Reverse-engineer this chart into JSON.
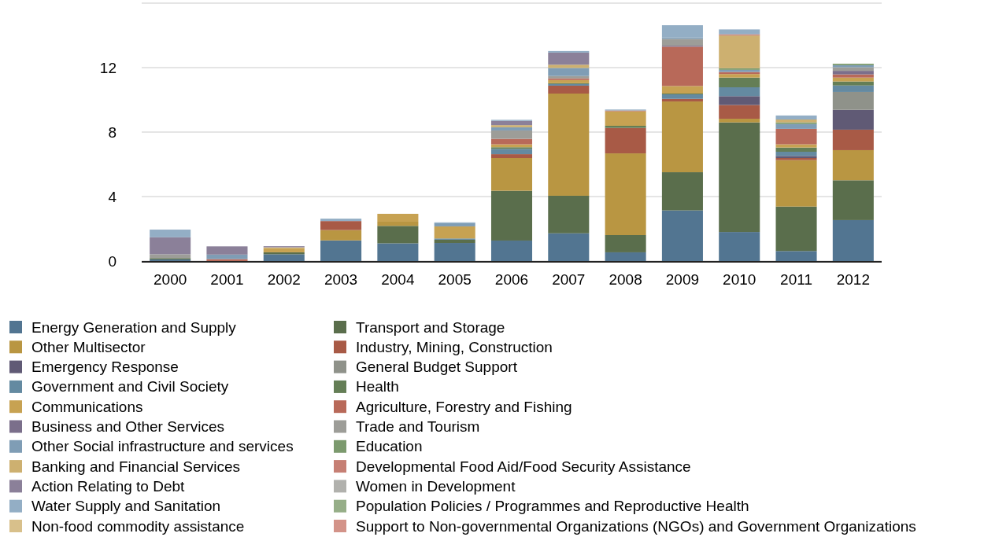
{
  "chart_data": {
    "type": "bar",
    "stacked": true,
    "categories": [
      "2000",
      "2001",
      "2002",
      "2003",
      "2004",
      "2005",
      "2006",
      "2007",
      "2008",
      "2009",
      "2010",
      "2011",
      "2012"
    ],
    "ylim": [
      0,
      16
    ],
    "yticks": [
      0,
      4,
      8,
      12
    ],
    "grid": "y",
    "legend": "bottom",
    "series": [
      {
        "name": "Energy Generation and Supply",
        "color": "#527591",
        "values": [
          0.1,
          0,
          0.42,
          1.28,
          1.1,
          1.12,
          1.27,
          1.72,
          0.54,
          3.14,
          1.8,
          0.62,
          2.54
        ]
      },
      {
        "name": "Transport and Storage",
        "color": "#5a6e4c",
        "values": [
          0.08,
          0,
          0.12,
          0,
          1.08,
          0.2,
          3.09,
          2.33,
          1.07,
          2.37,
          6.8,
          2.76,
          2.47
        ]
      },
      {
        "name": "Other Multisector",
        "color": "#b99642",
        "values": [
          0,
          0,
          0,
          0.64,
          0.26,
          0,
          2.03,
          6.34,
          5.07,
          4.39,
          0.23,
          2.88,
          1.87
        ]
      },
      {
        "name": "Industry, Mining, Construction",
        "color": "#a85a46",
        "values": [
          0,
          0,
          0,
          0.56,
          0,
          0,
          0.24,
          0.49,
          1.58,
          0.16,
          0.85,
          0.13,
          1.27
        ]
      },
      {
        "name": "Emergency Response",
        "color": "#605a75",
        "values": [
          0,
          0,
          0,
          0,
          0,
          0,
          0,
          0,
          0,
          0,
          0.55,
          0.13,
          1.23
        ]
      },
      {
        "name": "General Budget Support",
        "color": "#8f928a",
        "values": [
          0,
          0,
          0,
          0,
          0,
          0,
          0,
          0,
          0,
          0,
          0,
          0,
          1.11
        ]
      },
      {
        "name": "Government and Civil Society",
        "color": "#648aa1",
        "values": [
          0,
          0,
          0,
          0,
          0,
          0.08,
          0.33,
          0.1,
          0,
          0.28,
          0.55,
          0.26,
          0.4
        ]
      },
      {
        "name": "Health",
        "color": "#647e56",
        "values": [
          0,
          0,
          0,
          0,
          0,
          0,
          0.1,
          0.05,
          0.13,
          0.05,
          0.6,
          0.26,
          0.25
        ]
      },
      {
        "name": "Communications",
        "color": "#c7a252",
        "values": [
          0,
          0,
          0.26,
          0,
          0.49,
          0.75,
          0.18,
          0.2,
          0.9,
          0.47,
          0.22,
          0.2,
          0.24
        ]
      },
      {
        "name": "Agriculture, Forestry and Fishing",
        "color": "#b86959",
        "values": [
          0,
          0.12,
          0,
          0,
          0,
          0,
          0.34,
          0.1,
          0.05,
          2.44,
          0.13,
          0.96,
          0.2
        ]
      },
      {
        "name": "Business and Other Services",
        "color": "#7b6f8b",
        "values": [
          0,
          0,
          0,
          0,
          0,
          0,
          0,
          0,
          0,
          0.06,
          0,
          0,
          0.22
        ]
      },
      {
        "name": "Trade and Tourism",
        "color": "#9d9d98",
        "values": [
          0.24,
          0,
          0,
          0,
          0,
          0,
          0.52,
          0.15,
          0,
          0.42,
          0,
          0,
          0.22
        ]
      },
      {
        "name": "Other Social infrastructure and services",
        "color": "#7f9db5",
        "values": [
          0,
          0.28,
          0,
          0,
          0,
          0.2,
          0.2,
          0.5,
          0,
          0.1,
          0.13,
          0.3,
          0.13
        ]
      },
      {
        "name": "Education",
        "color": "#7c9a6e",
        "values": [
          0,
          0,
          0,
          0,
          0,
          0,
          0,
          0,
          0,
          0,
          0.1,
          0.1,
          0.09
        ]
      },
      {
        "name": "Banking and Financial Services",
        "color": "#cdb070",
        "values": [
          0,
          0,
          0.05,
          0,
          0,
          0,
          0.13,
          0.2,
          0,
          0,
          2.03,
          0.18,
          0
        ]
      },
      {
        "name": "Developmental Food Aid/Food Security Assistance",
        "color": "#c67f74",
        "values": [
          0,
          0,
          0,
          0,
          0,
          0,
          0,
          0,
          0,
          0,
          0.08,
          0,
          0
        ]
      },
      {
        "name": "Action Relating to Debt",
        "color": "#8b8099",
        "values": [
          1.05,
          0.51,
          0.07,
          0,
          0,
          0,
          0.26,
          0.75,
          0,
          0,
          0,
          0,
          0
        ]
      },
      {
        "name": "Women in Development",
        "color": "#b1b1ad",
        "values": [
          0,
          0,
          0,
          0,
          0,
          0,
          0,
          0,
          0,
          0,
          0,
          0,
          0
        ]
      },
      {
        "name": "Water Supply and Sanitation",
        "color": "#93aec5",
        "values": [
          0.48,
          0,
          0,
          0.15,
          0,
          0.05,
          0.07,
          0.1,
          0.06,
          0.75,
          0.3,
          0.25,
          0
        ]
      },
      {
        "name": "Population Policies / Programmes and Reproductive Health",
        "color": "#96ae88",
        "values": [
          0,
          0,
          0,
          0,
          0,
          0,
          0,
          0,
          0,
          0,
          0,
          0,
          0
        ]
      },
      {
        "name": "Non-food commodity assistance",
        "color": "#d8c08b",
        "values": [
          0,
          0,
          0,
          0,
          0,
          0,
          0,
          0,
          0,
          0,
          0,
          0,
          0
        ]
      },
      {
        "name": "Support to Non-governmental Organizations (NGOs) and Government Organizations",
        "color": "#d39389",
        "values": [
          0,
          0,
          0,
          0,
          0,
          0,
          0,
          0,
          0,
          0,
          0,
          0,
          0
        ]
      }
    ]
  }
}
